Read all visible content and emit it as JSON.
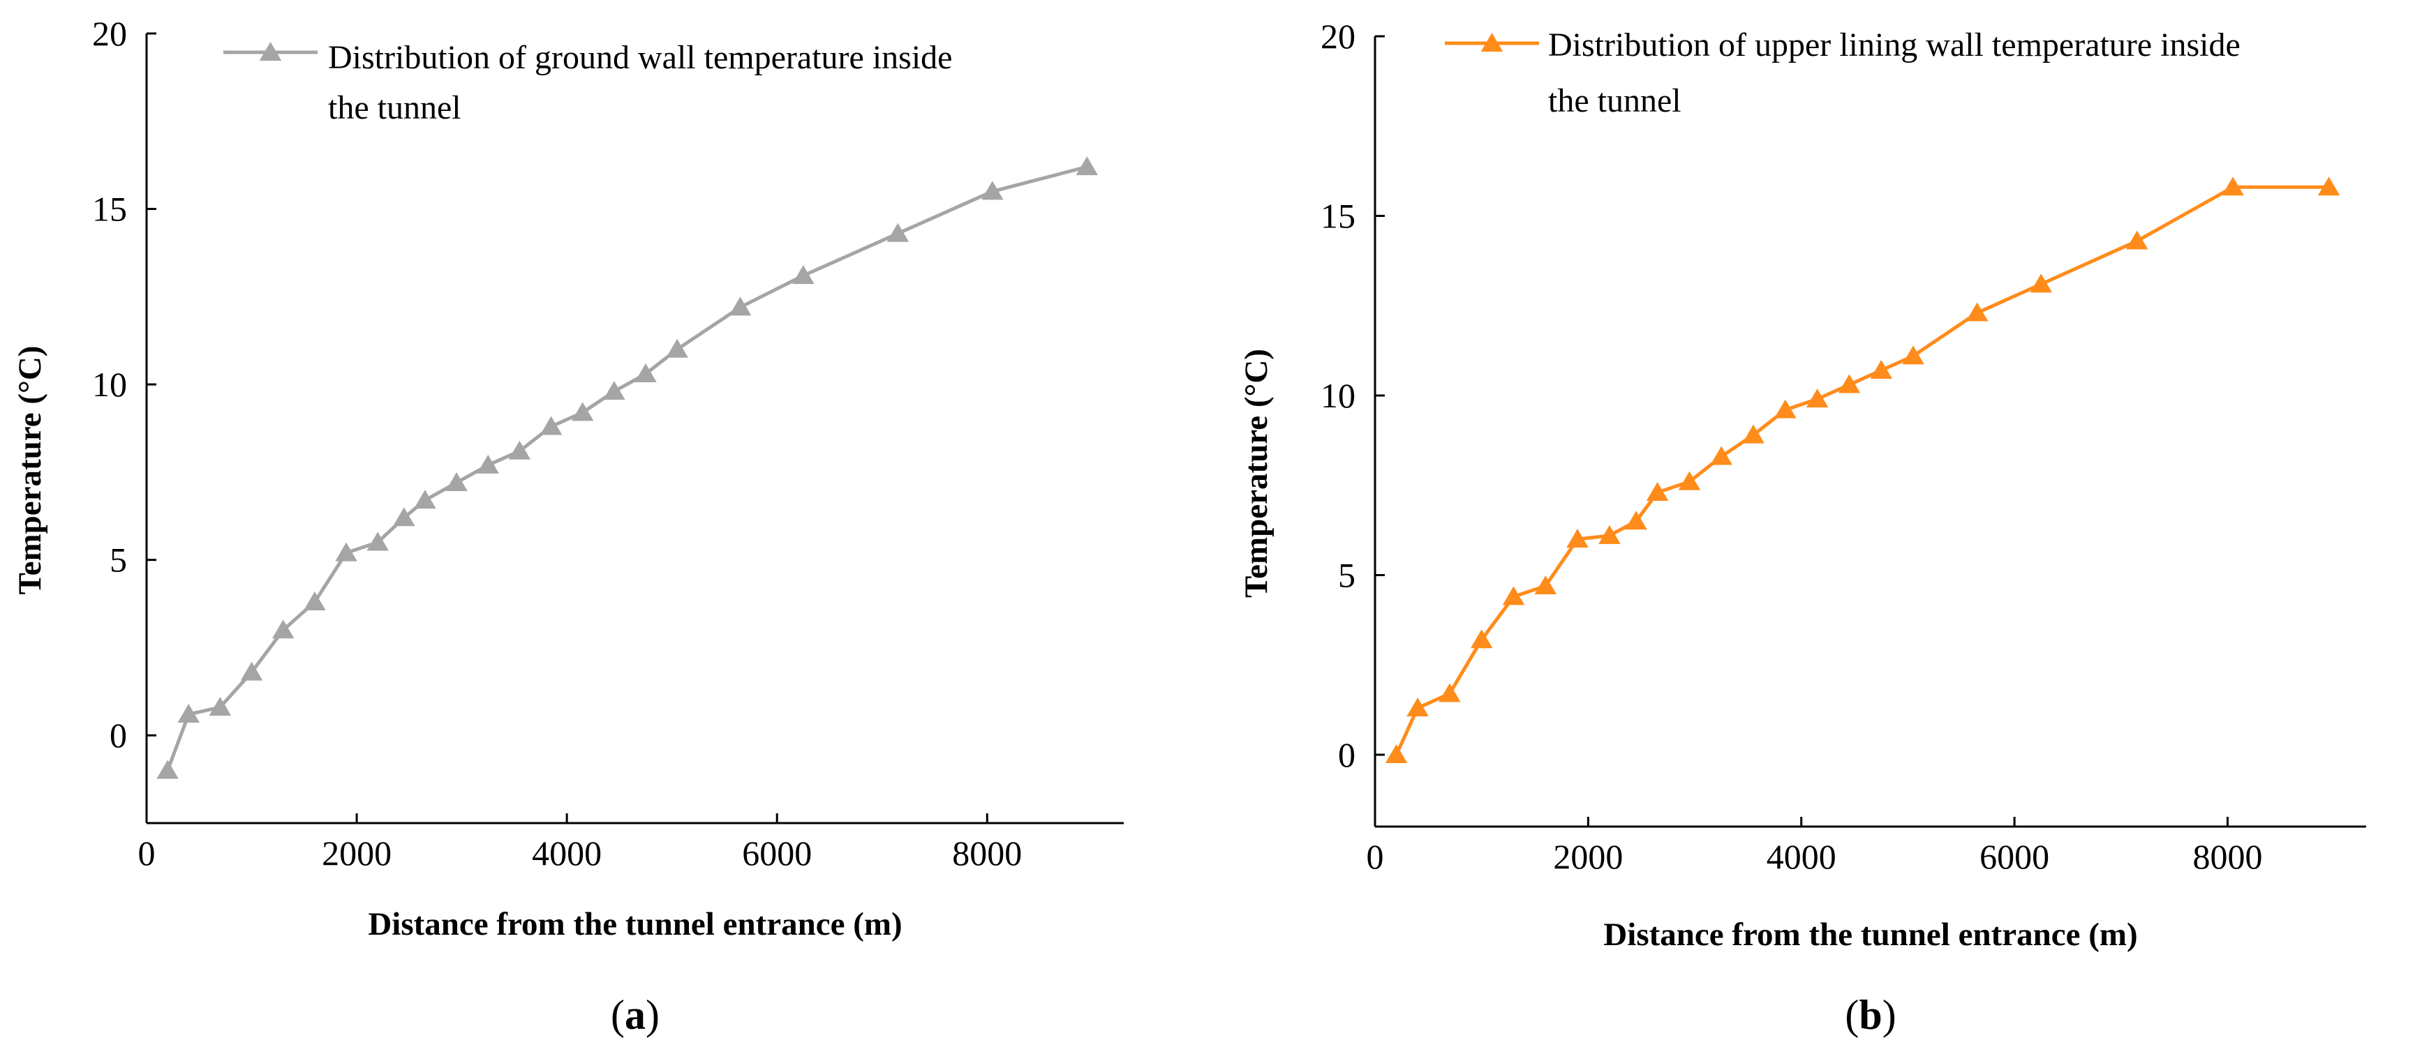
{
  "chart_data": [
    {
      "type": "line",
      "panel_label": "a",
      "title": "",
      "xlabel": "Distance from the tunnel entrance (m)",
      "ylabel": "Temperature  (°C)",
      "xlim": [
        0,
        9300
      ],
      "ylim": [
        -2.5,
        20
      ],
      "xticks": [
        0,
        2000,
        4000,
        6000,
        8000
      ],
      "yticks": [
        0,
        5,
        10,
        15,
        20
      ],
      "grid": false,
      "legend_position": "top",
      "series": [
        {
          "name": "Distribution of ground wall temperature inside the tunnel",
          "legend_lines": [
            "Distribution of ground wall temperature inside",
            "the tunnel"
          ],
          "color": "#a5a5a5",
          "marker": "triangle",
          "x": [
            200,
            400,
            700,
            1000,
            1300,
            1600,
            1900,
            2200,
            2450,
            2650,
            2950,
            3250,
            3550,
            3850,
            4150,
            4450,
            4750,
            5050,
            5650,
            6250,
            7150,
            8050,
            8950
          ],
          "y": [
            -1.0,
            0.6,
            0.8,
            1.8,
            3.0,
            3.8,
            5.2,
            5.5,
            6.2,
            6.7,
            7.2,
            7.7,
            8.1,
            8.8,
            9.2,
            9.8,
            10.3,
            11.0,
            12.2,
            13.1,
            14.3,
            15.5,
            16.2
          ]
        }
      ]
    },
    {
      "type": "line",
      "panel_label": "b",
      "title": "",
      "xlabel": "Distance from the tunnel entrance (m)",
      "ylabel": "Temperature  (°C)",
      "xlim": [
        0,
        9300
      ],
      "ylim": [
        -2,
        20
      ],
      "xticks": [
        0,
        2000,
        4000,
        6000,
        8000
      ],
      "yticks": [
        0,
        5,
        10,
        15,
        20
      ],
      "grid": false,
      "legend_position": "top",
      "series": [
        {
          "name": "Distribution of upper lining wall temperature inside the tunnel",
          "legend_lines": [
            "Distribution of upper lining wall temperature inside",
            "the tunnel"
          ],
          "color": "#ff8c1a",
          "marker": "triangle",
          "x": [
            200,
            400,
            700,
            1000,
            1300,
            1600,
            1900,
            2200,
            2450,
            2650,
            2950,
            3250,
            3550,
            3850,
            4150,
            4450,
            4750,
            5050,
            5650,
            6250,
            7150,
            8050,
            8950
          ],
          "y": [
            0.0,
            1.3,
            1.7,
            3.2,
            4.4,
            4.7,
            6.0,
            6.1,
            6.5,
            7.3,
            7.6,
            8.3,
            8.9,
            9.6,
            9.9,
            10.3,
            10.7,
            11.1,
            12.3,
            13.1,
            14.3,
            15.8,
            15.8
          ]
        }
      ]
    }
  ]
}
